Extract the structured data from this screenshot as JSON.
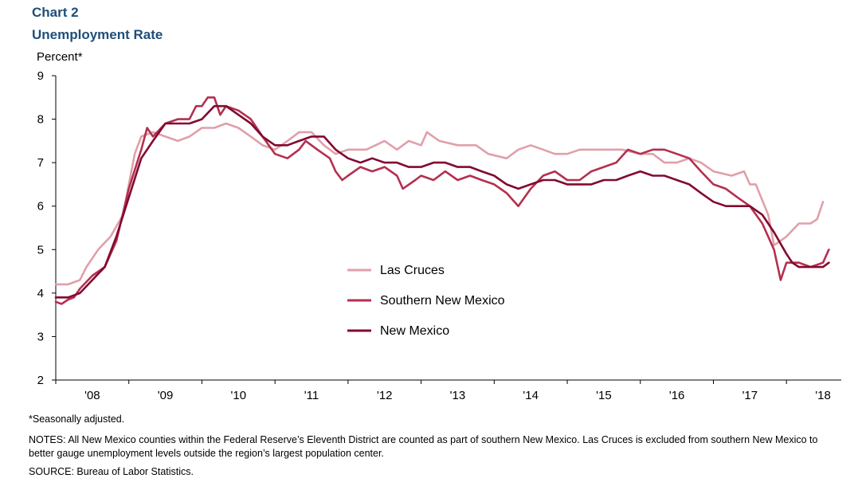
{
  "header": {
    "chart_number": "Chart 2",
    "title": "Unemployment  Rate"
  },
  "footer": {
    "footnote": "*Seasonally adjusted.",
    "notes": "NOTES: All New Mexico counties within the Federal Reserve’s Eleventh District are counted as part of southern New Mexico. Las Cruces is excluded from southern New Mexico to better gauge unemployment levels outside the region’s largest population center.",
    "source": "SOURCE:  Bureau of Labor Statistics."
  },
  "chart_data": {
    "type": "line",
    "title": "Unemployment  Rate",
    "ylabel": "Percent*",
    "xlabel": "",
    "ylim": [
      2,
      9
    ],
    "yticks": [
      2,
      3,
      4,
      5,
      6,
      7,
      8,
      9
    ],
    "xlim": [
      2008.0,
      2018.75
    ],
    "x_tick_labels": [
      "'08",
      "'09",
      "'10",
      "'11",
      "'12",
      "'13",
      "'14",
      "'15",
      "'16",
      "'17",
      "'18"
    ],
    "x_tick_years": [
      2008,
      2009,
      2010,
      2011,
      2012,
      2013,
      2014,
      2015,
      2016,
      2017,
      2018
    ],
    "grid": false,
    "legend_position": "center",
    "series": [
      {
        "name": "Las Cruces",
        "color": "#e0a0aa",
        "points": [
          [
            2008.0,
            4.2
          ],
          [
            2008.17,
            4.2
          ],
          [
            2008.33,
            4.3
          ],
          [
            2008.42,
            4.6
          ],
          [
            2008.58,
            5.0
          ],
          [
            2008.75,
            5.3
          ],
          [
            2008.92,
            5.8
          ],
          [
            2009.08,
            7.2
          ],
          [
            2009.17,
            7.6
          ],
          [
            2009.33,
            7.7
          ],
          [
            2009.5,
            7.6
          ],
          [
            2009.67,
            7.5
          ],
          [
            2009.83,
            7.6
          ],
          [
            2010.0,
            7.8
          ],
          [
            2010.17,
            7.8
          ],
          [
            2010.33,
            7.9
          ],
          [
            2010.5,
            7.8
          ],
          [
            2010.67,
            7.6
          ],
          [
            2010.83,
            7.4
          ],
          [
            2011.0,
            7.3
          ],
          [
            2011.17,
            7.5
          ],
          [
            2011.33,
            7.7
          ],
          [
            2011.5,
            7.7
          ],
          [
            2011.67,
            7.4
          ],
          [
            2011.83,
            7.2
          ],
          [
            2012.0,
            7.3
          ],
          [
            2012.25,
            7.3
          ],
          [
            2012.5,
            7.5
          ],
          [
            2012.67,
            7.3
          ],
          [
            2012.83,
            7.5
          ],
          [
            2013.0,
            7.4
          ],
          [
            2013.08,
            7.7
          ],
          [
            2013.25,
            7.5
          ],
          [
            2013.5,
            7.4
          ],
          [
            2013.75,
            7.4
          ],
          [
            2013.92,
            7.2
          ],
          [
            2014.17,
            7.1
          ],
          [
            2014.33,
            7.3
          ],
          [
            2014.5,
            7.4
          ],
          [
            2014.67,
            7.3
          ],
          [
            2014.83,
            7.2
          ],
          [
            2015.0,
            7.2
          ],
          [
            2015.17,
            7.3
          ],
          [
            2015.5,
            7.3
          ],
          [
            2015.75,
            7.3
          ],
          [
            2016.0,
            7.2
          ],
          [
            2016.17,
            7.2
          ],
          [
            2016.33,
            7.0
          ],
          [
            2016.5,
            7.0
          ],
          [
            2016.67,
            7.1
          ],
          [
            2016.83,
            7.0
          ],
          [
            2017.0,
            6.8
          ],
          [
            2017.25,
            6.7
          ],
          [
            2017.42,
            6.8
          ],
          [
            2017.5,
            6.5
          ],
          [
            2017.58,
            6.5
          ],
          [
            2017.75,
            5.8
          ],
          [
            2017.83,
            5.1
          ],
          [
            2018.0,
            5.3
          ],
          [
            2018.17,
            5.6
          ],
          [
            2018.33,
            5.6
          ],
          [
            2018.42,
            5.7
          ],
          [
            2018.5,
            6.1
          ]
        ]
      },
      {
        "name": "Southern New Mexico",
        "color": "#b4304e",
        "points": [
          [
            2008.0,
            3.8
          ],
          [
            2008.08,
            3.75
          ],
          [
            2008.17,
            3.85
          ],
          [
            2008.25,
            3.9
          ],
          [
            2008.33,
            4.1
          ],
          [
            2008.5,
            4.4
          ],
          [
            2008.67,
            4.6
          ],
          [
            2008.83,
            5.2
          ],
          [
            2009.0,
            6.4
          ],
          [
            2009.17,
            7.3
          ],
          [
            2009.25,
            7.8
          ],
          [
            2009.33,
            7.6
          ],
          [
            2009.5,
            7.9
          ],
          [
            2009.67,
            8.0
          ],
          [
            2009.83,
            8.0
          ],
          [
            2009.92,
            8.3
          ],
          [
            2010.0,
            8.3
          ],
          [
            2010.08,
            8.5
          ],
          [
            2010.17,
            8.5
          ],
          [
            2010.25,
            8.1
          ],
          [
            2010.33,
            8.3
          ],
          [
            2010.5,
            8.2
          ],
          [
            2010.67,
            8.0
          ],
          [
            2010.83,
            7.6
          ],
          [
            2011.0,
            7.2
          ],
          [
            2011.17,
            7.1
          ],
          [
            2011.33,
            7.3
          ],
          [
            2011.42,
            7.5
          ],
          [
            2011.58,
            7.3
          ],
          [
            2011.75,
            7.1
          ],
          [
            2011.83,
            6.8
          ],
          [
            2011.92,
            6.6
          ],
          [
            2012.0,
            6.7
          ],
          [
            2012.17,
            6.9
          ],
          [
            2012.33,
            6.8
          ],
          [
            2012.5,
            6.9
          ],
          [
            2012.67,
            6.7
          ],
          [
            2012.75,
            6.4
          ],
          [
            2012.92,
            6.6
          ],
          [
            2013.0,
            6.7
          ],
          [
            2013.17,
            6.6
          ],
          [
            2013.33,
            6.8
          ],
          [
            2013.5,
            6.6
          ],
          [
            2013.67,
            6.7
          ],
          [
            2013.83,
            6.6
          ],
          [
            2014.0,
            6.5
          ],
          [
            2014.17,
            6.3
          ],
          [
            2014.33,
            6.0
          ],
          [
            2014.5,
            6.4
          ],
          [
            2014.67,
            6.7
          ],
          [
            2014.83,
            6.8
          ],
          [
            2015.0,
            6.6
          ],
          [
            2015.17,
            6.6
          ],
          [
            2015.33,
            6.8
          ],
          [
            2015.5,
            6.9
          ],
          [
            2015.67,
            7.0
          ],
          [
            2015.83,
            7.3
          ],
          [
            2016.0,
            7.2
          ],
          [
            2016.17,
            7.3
          ],
          [
            2016.33,
            7.3
          ],
          [
            2016.5,
            7.2
          ],
          [
            2016.67,
            7.1
          ],
          [
            2016.83,
            6.8
          ],
          [
            2017.0,
            6.5
          ],
          [
            2017.17,
            6.4
          ],
          [
            2017.33,
            6.2
          ],
          [
            2017.5,
            6.0
          ],
          [
            2017.67,
            5.6
          ],
          [
            2017.83,
            5.0
          ],
          [
            2017.92,
            4.3
          ],
          [
            2018.0,
            4.7
          ],
          [
            2018.17,
            4.7
          ],
          [
            2018.33,
            4.6
          ],
          [
            2018.5,
            4.7
          ],
          [
            2018.58,
            5.0
          ]
        ]
      },
      {
        "name": "New Mexico",
        "color": "#820a30",
        "points": [
          [
            2008.0,
            3.9
          ],
          [
            2008.17,
            3.9
          ],
          [
            2008.33,
            4.0
          ],
          [
            2008.5,
            4.3
          ],
          [
            2008.67,
            4.6
          ],
          [
            2008.83,
            5.3
          ],
          [
            2009.0,
            6.2
          ],
          [
            2009.17,
            7.1
          ],
          [
            2009.33,
            7.5
          ],
          [
            2009.5,
            7.9
          ],
          [
            2009.67,
            7.9
          ],
          [
            2009.83,
            7.9
          ],
          [
            2010.0,
            8.0
          ],
          [
            2010.17,
            8.3
          ],
          [
            2010.33,
            8.3
          ],
          [
            2010.5,
            8.1
          ],
          [
            2010.67,
            7.9
          ],
          [
            2010.83,
            7.6
          ],
          [
            2011.0,
            7.4
          ],
          [
            2011.17,
            7.4
          ],
          [
            2011.33,
            7.5
          ],
          [
            2011.5,
            7.6
          ],
          [
            2011.67,
            7.6
          ],
          [
            2011.83,
            7.3
          ],
          [
            2012.0,
            7.1
          ],
          [
            2012.17,
            7.0
          ],
          [
            2012.33,
            7.1
          ],
          [
            2012.5,
            7.0
          ],
          [
            2012.67,
            7.0
          ],
          [
            2012.83,
            6.9
          ],
          [
            2013.0,
            6.9
          ],
          [
            2013.17,
            7.0
          ],
          [
            2013.33,
            7.0
          ],
          [
            2013.5,
            6.9
          ],
          [
            2013.67,
            6.9
          ],
          [
            2013.83,
            6.8
          ],
          [
            2014.0,
            6.7
          ],
          [
            2014.17,
            6.5
          ],
          [
            2014.33,
            6.4
          ],
          [
            2014.5,
            6.5
          ],
          [
            2014.67,
            6.6
          ],
          [
            2014.83,
            6.6
          ],
          [
            2015.0,
            6.5
          ],
          [
            2015.17,
            6.5
          ],
          [
            2015.33,
            6.5
          ],
          [
            2015.5,
            6.6
          ],
          [
            2015.67,
            6.6
          ],
          [
            2015.83,
            6.7
          ],
          [
            2016.0,
            6.8
          ],
          [
            2016.17,
            6.7
          ],
          [
            2016.33,
            6.7
          ],
          [
            2016.5,
            6.6
          ],
          [
            2016.67,
            6.5
          ],
          [
            2016.83,
            6.3
          ],
          [
            2017.0,
            6.1
          ],
          [
            2017.17,
            6.0
          ],
          [
            2017.33,
            6.0
          ],
          [
            2017.5,
            6.0
          ],
          [
            2017.67,
            5.8
          ],
          [
            2017.83,
            5.4
          ],
          [
            2018.0,
            4.9
          ],
          [
            2018.08,
            4.7
          ],
          [
            2018.17,
            4.6
          ],
          [
            2018.33,
            4.6
          ],
          [
            2018.5,
            4.6
          ],
          [
            2018.58,
            4.7
          ]
        ]
      }
    ]
  }
}
